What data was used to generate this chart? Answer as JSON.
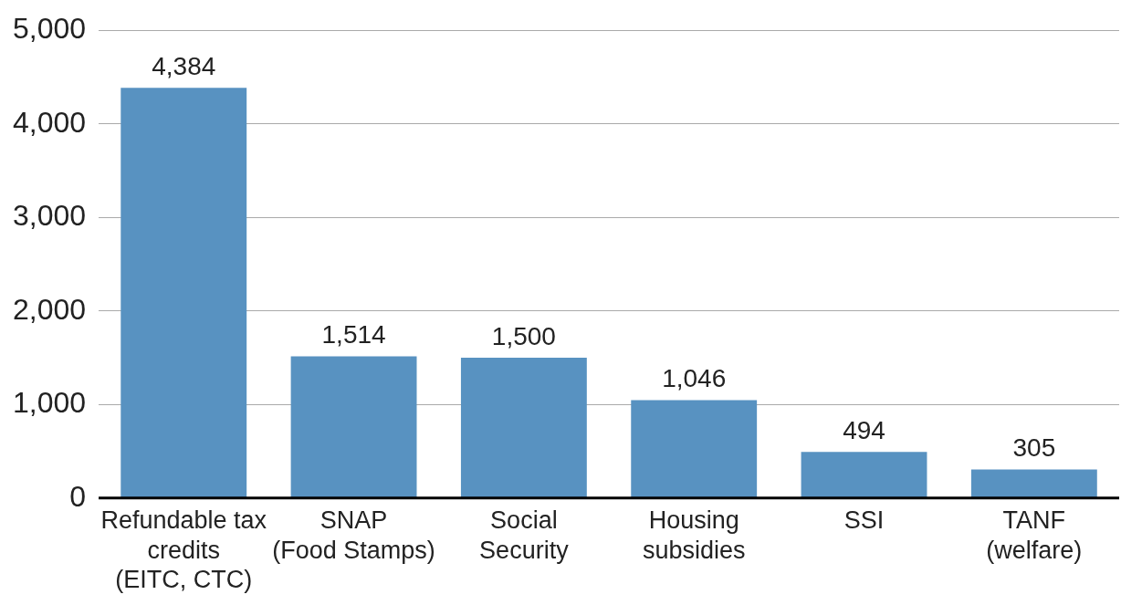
{
  "chart_data": {
    "type": "bar",
    "categories": [
      "Refundable tax\ncredits\n(EITC, CTC)",
      "SNAP\n(Food Stamps)",
      "Social\nSecurity",
      "Housing\nsubsidies",
      "SSI",
      "TANF\n(welfare)"
    ],
    "values": [
      4384,
      1514,
      1500,
      1046,
      494,
      305
    ],
    "value_labels": [
      "4,384",
      "1,514",
      "1,500",
      "1,046",
      "494",
      "305"
    ],
    "color": "#5892c1",
    "ylim": [
      0,
      5000
    ],
    "yticks": [
      0,
      {
        "value": 1000,
        "label": "1,000"
      },
      {
        "value": 2000,
        "label": "2,000"
      },
      {
        "value": 3000,
        "label": "3,000"
      },
      {
        "value": 4000,
        "label": "4,000"
      },
      {
        "value": 5000,
        "label": "5,000"
      }
    ],
    "grid": "y"
  }
}
